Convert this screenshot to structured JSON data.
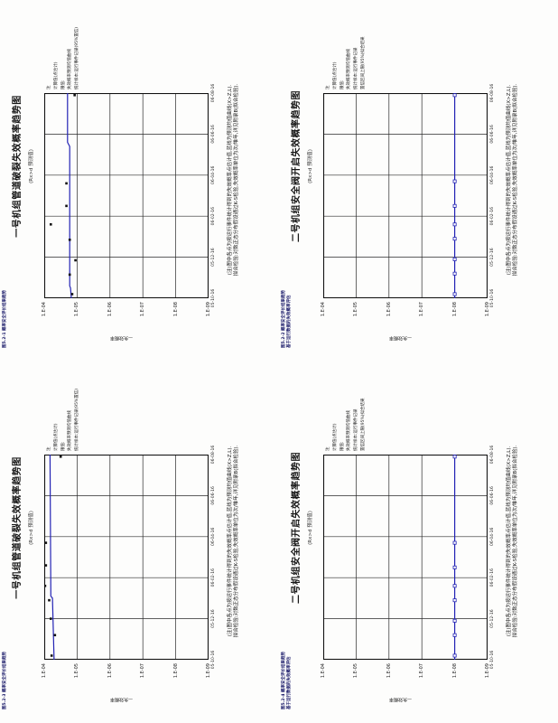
{
  "page": {
    "kind": "scanned report page, rotated 90deg CCW",
    "background": "#fdfdfc"
  },
  "colors": {
    "line_blue": "#2222b4",
    "grid": "#2a2a2a",
    "header_navy": "#181868",
    "marker_black": "#111111"
  },
  "chart_data": [
    {
      "position": "top-left",
      "type": "line",
      "header_lines": [
        "图5.2-1 概率安全评价结果趋势"
      ],
      "title": "一号机组管道破裂失效概率趋势图",
      "subtitle": "(Rx>d 预测值)",
      "y_axis_title": "—失效概率",
      "y_scale": "log",
      "y_ticks": [
        "1.E-04",
        "1.E-05",
        "1.E-06",
        "1.E-07",
        "1.E-08",
        "1.E-09"
      ],
      "x_ticks": [
        "05-10-16",
        "05-12-16",
        "06-02-16",
        "06-04-16",
        "06-06-16",
        "06-08-16"
      ],
      "grid": {
        "x_divisions": 5,
        "y_divisions": 5
      },
      "legend_lines": [
        "注",
        "计算值(点估计)",
        "限值:",
        "失效概率预测均值曲线",
        "统计样本:运行事件记录(95%置信)"
      ],
      "caption_lines": [
        "(注)图中各点为按运行事件统计得到的失效概率点估计值,蓝线为预测均值曲线(X>Z,L).",
        "拟合检验:对数正态分布假设通过K-S检验,失效概率单位为次/堆年,详见附录B(拟合检验)."
      ],
      "line": {
        "label": "预测均值",
        "color": "#2222b4",
        "approx_value": "2.0E-05",
        "points_frac": [
          [
            0,
            0.165
          ],
          [
            0.05,
            0.16
          ],
          [
            0.06,
            0.155
          ],
          [
            0.74,
            0.155
          ],
          [
            0.76,
            0.142
          ],
          [
            1,
            0.142
          ]
        ]
      },
      "scatter": {
        "label": "计算值",
        "marker": "filled-square-black",
        "approx_value_range": "1.5E-05 ~ 8E-05",
        "points_frac": [
          [
            0.02,
            0.17
          ],
          [
            0.115,
            0.155
          ],
          [
            0.185,
            0.19
          ],
          [
            0.285,
            0.155
          ],
          [
            0.36,
            0.04
          ],
          [
            0.45,
            0.135
          ],
          [
            0.56,
            0.135
          ],
          [
            0.99,
            0.185
          ]
        ]
      }
    },
    {
      "position": "top-right",
      "type": "line",
      "header_lines": [
        "图5.2-2 概率安全评价结果趋势",
        "基于运行数据的失效概率评估"
      ],
      "title": "二号机组安全阀开启失效概率趋势图",
      "subtitle": "(Rx>d 预测值)",
      "y_axis_title": "—失效概率",
      "y_scale": "log",
      "y_ticks": [
        "1.E-04",
        "1.E-05",
        "1.E-06",
        "1.E-07",
        "1.E-08",
        "1.E-09"
      ],
      "x_ticks": [
        "05-10-16",
        "05-12-16",
        "06-02-16",
        "06-04-16",
        "06-06-16",
        "06-08-16"
      ],
      "grid": {
        "x_divisions": 5,
        "y_divisions": 5
      },
      "legend_lines": [
        "注",
        "计算值(点估计)",
        "限值:",
        "失效概率预测均值曲线",
        "统计样本:运行事件记录",
        "置信区间上限(95%)拟合结果"
      ],
      "caption_lines": [
        "(注)图中各点为按运行事件统计得到的失效概率点估计值,蓝线为预测均值曲线(X>Z,L).",
        "拟合检验:对数正态分布假设通过K-S检验,失效概率单位为次/堆年,详见附录B(拟合检验)."
      ],
      "line": {
        "label": "预测均值",
        "color": "#2222b4",
        "approx_value": "1.0E-08",
        "points_frac": [
          [
            0,
            0.8
          ],
          [
            1,
            0.8
          ]
        ]
      },
      "scatter": {
        "label": "计算值",
        "marker": "open-square-blue",
        "approx_value_range": "1.0E-08 (恒定)",
        "points_frac": [
          [
            0.02,
            0.8
          ],
          [
            0.12,
            0.8
          ],
          [
            0.19,
            0.8
          ],
          [
            0.29,
            0.8
          ],
          [
            0.36,
            0.8
          ],
          [
            0.45,
            0.8
          ],
          [
            0.57,
            0.8
          ],
          [
            0.99,
            0.8
          ]
        ]
      }
    },
    {
      "position": "bottom-left",
      "type": "line",
      "header_lines": [
        "图5.2-3 概率安全评价结果趋势"
      ],
      "title": "一号机组管道破裂失效概率趋势图",
      "subtitle": "(Rx>d 预测值)",
      "y_axis_title": "—失效概率",
      "y_scale": "log",
      "y_ticks": [
        "1.E-04",
        "1.E-05",
        "1.E-06",
        "1.E-07",
        "1.E-08",
        "1.E-09"
      ],
      "x_ticks": [
        "05-10-16",
        "05-12-16",
        "06-02-16",
        "06-04-16",
        "06-06-16",
        "06-08-16"
      ],
      "grid": {
        "x_divisions": 5,
        "y_divisions": 5
      },
      "legend_lines": [
        "注",
        "计算值(点估计)",
        "限值:",
        "失效概率预测均值曲线",
        "统计样本:运行事件记录(95%置信)"
      ],
      "caption_lines": [
        "(注)图中各点为按运行事件统计得到的失效概率点估计值,蓝线为预测均值曲线(X>Z,L).",
        "拟合检验:对数正态分布假设通过K-S检验,失效概率单位为次/堆年,详见附录B(拟合检验)."
      ],
      "line": {
        "label": "预测均值",
        "color": "#2222b4",
        "approx_value": "7.0E-05",
        "points_frac": [
          [
            0,
            0.06
          ],
          [
            0.3,
            0.05
          ],
          [
            0.31,
            0.04
          ],
          [
            1,
            0.035
          ]
        ]
      },
      "scatter": {
        "label": "计算值",
        "marker": "filled-square-black",
        "approx_value_range": "6E-05 ~ 1E-04",
        "points_frac": [
          [
            0.02,
            0.045
          ],
          [
            0.12,
            0.065
          ],
          [
            0.2,
            0.04
          ],
          [
            0.29,
            0.03
          ],
          [
            0.36,
            0.005
          ],
          [
            0.46,
            0.01
          ],
          [
            0.57,
            0.01
          ],
          [
            0.99,
            0.1
          ]
        ]
      }
    },
    {
      "position": "bottom-right",
      "type": "line",
      "header_lines": [
        "图5.2-4 概率安全评价结果趋势",
        "基于运行数据的失效概率评估"
      ],
      "title": "二号机组安全阀开启失效概率趋势图",
      "subtitle": "(Rx>d 预测值)",
      "y_axis_title": "—失效概率",
      "y_scale": "log",
      "y_ticks": [
        "1.E-04",
        "1.E-05",
        "1.E-06",
        "1.E-07",
        "1.E-08",
        "1.E-09"
      ],
      "x_ticks": [
        "05-10-16",
        "05-12-16",
        "06-02-16",
        "06-04-16",
        "06-06-16",
        "06-08-16"
      ],
      "grid": {
        "x_divisions": 5,
        "y_divisions": 5
      },
      "legend_lines": [
        "注",
        "计算值(点估计)",
        "限值:",
        "失效概率预测均值曲线",
        "统计样本:运行事件记录",
        "置信区间上限(95%)拟合结果"
      ],
      "caption_lines": [
        "(注)图中各点为按运行事件统计得到的失效概率点估计值,蓝线为预测均值曲线(X>Z,L).",
        "拟合检验:对数正态分布假设通过K-S检验,失效概率单位为次/堆年,详见附录B(拟合检验)."
      ],
      "line": {
        "label": "预测均值",
        "color": "#2222b4",
        "approx_value": "1.0E-08",
        "points_frac": [
          [
            0,
            0.8
          ],
          [
            1,
            0.8
          ]
        ]
      },
      "scatter": {
        "label": "计算值",
        "marker": "open-square-blue",
        "approx_value_range": "1.0E-08 (恒定)",
        "points_frac": [
          [
            0.02,
            0.8
          ],
          [
            0.12,
            0.8
          ],
          [
            0.19,
            0.8
          ],
          [
            0.29,
            0.8
          ],
          [
            0.36,
            0.8
          ],
          [
            0.45,
            0.8
          ],
          [
            0.57,
            0.8
          ],
          [
            0.99,
            0.8
          ]
        ]
      }
    }
  ]
}
